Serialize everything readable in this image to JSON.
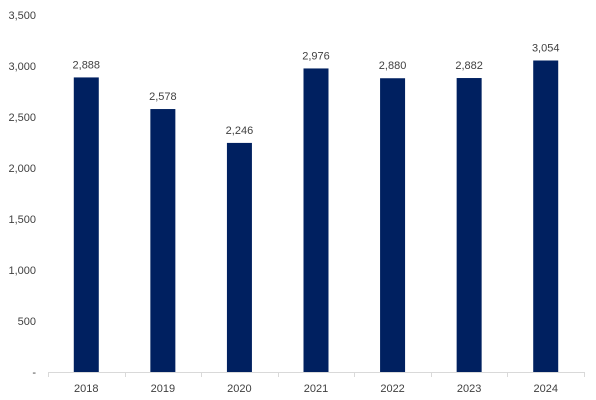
{
  "chart_data": {
    "type": "bar",
    "title": "",
    "xlabel": "",
    "ylabel": "",
    "categories": [
      "2018",
      "2019",
      "2020",
      "2021",
      "2022",
      "2023",
      "2024"
    ],
    "values": [
      2888,
      2578,
      2246,
      2976,
      2880,
      2882,
      3054
    ],
    "value_labels": [
      "2,888",
      "2,578",
      "2,246",
      "2,976",
      "2,880",
      "2,882",
      "3,054"
    ],
    "ylim": [
      0,
      3500
    ],
    "y_ticks": [
      0,
      500,
      1000,
      1500,
      2000,
      2500,
      3000,
      3500
    ],
    "y_tick_labels": [
      "-",
      "500",
      "1,000",
      "1,500",
      "2,000",
      "2,500",
      "3,000",
      "3,500"
    ],
    "grid": false,
    "legend": "none",
    "colors": {
      "bar": "#002060",
      "axis": "#d9d9d9",
      "text": "#404040"
    }
  }
}
